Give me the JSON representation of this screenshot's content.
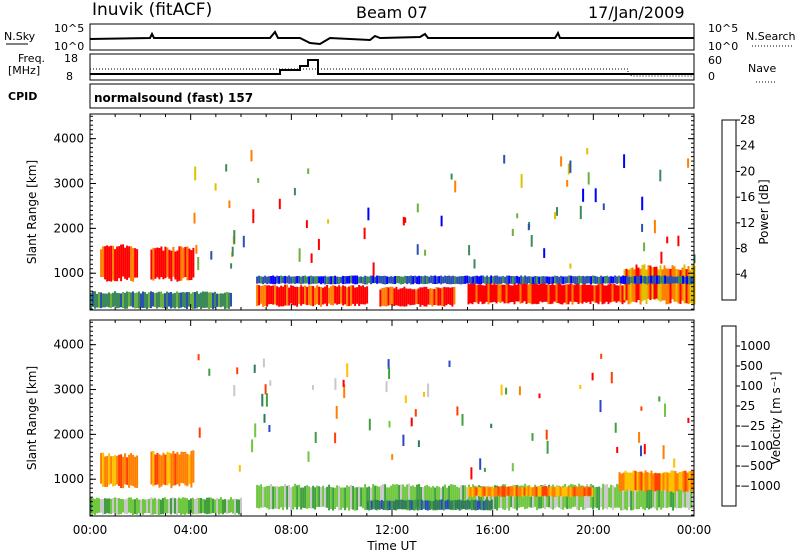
{
  "header": {
    "station": "Inuvik (fitACF)",
    "beam": "Beam 07",
    "date": "17/Jan/2009"
  },
  "top_panels": {
    "nsky_label": "N.Sky",
    "nsky_ticks": [
      "10^5",
      "10^0"
    ],
    "nsearch_label": "N.Search",
    "freq_label_1": "Freq.",
    "freq_label_2": "[MHz]",
    "freq_ticks": [
      "18",
      "8"
    ],
    "nave_label": "Nave",
    "nave_ticks": [
      "60",
      "0"
    ],
    "cpid_label": "CPID",
    "cpid_value": "normalsound (fast) 157"
  },
  "chart_data": [
    {
      "type": "heatmap",
      "title": "Power",
      "xlabel": "",
      "ylabel": "Slant Range [km]",
      "x_ticks": [
        "00:00",
        "04:00",
        "08:00",
        "12:00",
        "16:00",
        "20:00",
        "00:00"
      ],
      "y_ticks": [
        "1000",
        "2000",
        "3000",
        "4000"
      ],
      "xlim": [
        0,
        24
      ],
      "ylim": [
        180,
        4550
      ],
      "colorbar_label": "Power [dB]",
      "colorbar_ticks": [
        "4",
        "8",
        "12",
        "16",
        "20",
        "24",
        "28"
      ],
      "colorbar_colors": [
        "#0000ff",
        "#2a50b0",
        "#3c8a5a",
        "#6cb040",
        "#e0c000",
        "#ff8000",
        "#ff0000"
      ],
      "regions": [
        {
          "t": [
            0.4,
            1.9
          ],
          "r": [
            800,
            1650
          ],
          "level": 6
        },
        {
          "t": [
            2.4,
            4.1
          ],
          "r": [
            800,
            1600
          ],
          "level": 6
        },
        {
          "t": [
            0.0,
            5.6
          ],
          "r": [
            200,
            600
          ],
          "level": 2
        },
        {
          "t": [
            6.6,
            11.0
          ],
          "r": [
            250,
            750
          ],
          "level": 6
        },
        {
          "t": [
            11.5,
            14.5
          ],
          "r": [
            250,
            700
          ],
          "level": 6
        },
        {
          "t": [
            15.0,
            21.2
          ],
          "r": [
            300,
            800
          ],
          "level": 6
        },
        {
          "t": [
            21.2,
            24.0
          ],
          "r": [
            300,
            1200
          ],
          "level": 5
        },
        {
          "t": [
            6.6,
            24.0
          ],
          "r": [
            750,
            950
          ],
          "level": 1
        }
      ]
    },
    {
      "type": "heatmap",
      "title": "Velocity",
      "xlabel": "Time UT",
      "ylabel": "Slant Range [km]",
      "x_ticks": [
        "00:00",
        "04:00",
        "08:00",
        "12:00",
        "16:00",
        "20:00",
        "00:00"
      ],
      "y_ticks": [
        "1000",
        "2000",
        "3000",
        "4000"
      ],
      "xlim": [
        0,
        24
      ],
      "ylim": [
        180,
        4550
      ],
      "colorbar_label": "Velocity [m s⁻¹]",
      "colorbar_ticks": [
        "1000",
        "500",
        "100",
        "25",
        "−25",
        "−100",
        "−500",
        "−1000"
      ],
      "colorbar_colors": [
        "#2848c8",
        "#2e7a5a",
        "#40a040",
        "#70c840",
        "#c8c8c8",
        "#ffc000",
        "#ff8000",
        "#ff4000",
        "#ff0000"
      ],
      "regions": [
        {
          "t": [
            0.4,
            1.9
          ],
          "r": [
            800,
            1600
          ],
          "level": 6
        },
        {
          "t": [
            2.4,
            4.1
          ],
          "r": [
            800,
            1650
          ],
          "level": 6
        },
        {
          "t": [
            0.0,
            6.0
          ],
          "r": [
            200,
            600
          ],
          "level": 3
        },
        {
          "t": [
            6.6,
            24.0
          ],
          "r": [
            300,
            900
          ],
          "level": 3
        },
        {
          "t": [
            11.0,
            16.0
          ],
          "r": [
            300,
            550
          ],
          "level": 1
        },
        {
          "t": [
            15.0,
            20.0
          ],
          "r": [
            600,
            850
          ],
          "level": 6
        },
        {
          "t": [
            21.0,
            24.0
          ],
          "r": [
            700,
            1200
          ],
          "level": 6
        }
      ]
    }
  ]
}
